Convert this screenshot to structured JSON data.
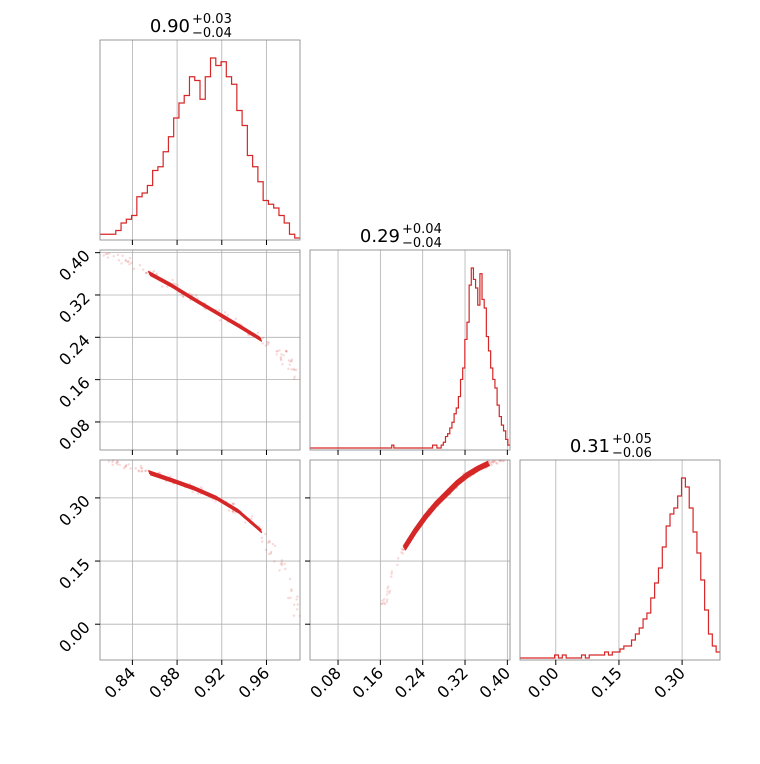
{
  "chart_data": {
    "type": "corner",
    "colors": {
      "series": "#d62728",
      "grid": "#b0b0b0",
      "frame": "#808080"
    },
    "grid": true,
    "parameters": [
      {
        "median": "0.90",
        "plus": "+0.03",
        "minus": "−0.04",
        "range": [
          0.811,
          0.99
        ]
      },
      {
        "median": "0.29",
        "plus": "+0.04",
        "minus": "−0.04",
        "range": [
          0.027,
          0.405
        ]
      },
      {
        "median": "0.31",
        "plus": "+0.05",
        "minus": "−0.06",
        "range": [
          -0.085,
          0.39
        ]
      }
    ],
    "ticks": {
      "p0": {
        "values": [
          0.84,
          0.88,
          0.92,
          0.96
        ],
        "labels": [
          "0.84",
          "0.88",
          "0.92",
          "0.96"
        ]
      },
      "p1": {
        "values": [
          0.08,
          0.16,
          0.24,
          0.32,
          0.4
        ],
        "labels": [
          "0.08",
          "0.16",
          "0.24",
          "0.32",
          "0.40"
        ]
      },
      "p2": {
        "values": [
          0.0,
          0.15,
          0.3
        ],
        "labels": [
          "0.00",
          "0.15",
          "0.30"
        ]
      }
    },
    "histograms": [
      {
        "param": 0,
        "counts": [
          1,
          1,
          1,
          2,
          4,
          5,
          6,
          11,
          12,
          14,
          18,
          19,
          23,
          27,
          32,
          36,
          38,
          43,
          42,
          37,
          43,
          48,
          46,
          47,
          43,
          41,
          34,
          30,
          22,
          19,
          15,
          10,
          9,
          8,
          6,
          4,
          1,
          0
        ]
      },
      {
        "param": 1,
        "counts": [
          0,
          0,
          0,
          0,
          0,
          0,
          0,
          0,
          0,
          0,
          0,
          0,
          0,
          0,
          0,
          0,
          0,
          0,
          0,
          0,
          0,
          0,
          0,
          0,
          0,
          0,
          0,
          0,
          0,
          0,
          0,
          0,
          0,
          0,
          0,
          0,
          0,
          0,
          1,
          0,
          0,
          0,
          0,
          0,
          0,
          0,
          0,
          0,
          0,
          0,
          0,
          0,
          0,
          0,
          0,
          0,
          0,
          1,
          1,
          0,
          0,
          1,
          2,
          4,
          5,
          7,
          9,
          12,
          14,
          18,
          24,
          28,
          38,
          44,
          57,
          63,
          59,
          56,
          50,
          61,
          52,
          49,
          39,
          34,
          28,
          24,
          21,
          15,
          11,
          8,
          6,
          3,
          1
        ]
      },
      {
        "param": 2,
        "counts": [
          0,
          0,
          0,
          0,
          0,
          0,
          0,
          0,
          0,
          1,
          0,
          1,
          0,
          0,
          0,
          0,
          1,
          0,
          1,
          1,
          1,
          1,
          2,
          1,
          2,
          2,
          3,
          4,
          4,
          6,
          8,
          10,
          13,
          15,
          20,
          25,
          30,
          37,
          44,
          48,
          50,
          54,
          60,
          57,
          50,
          42,
          35,
          26,
          16,
          8,
          4,
          2
        ]
      }
    ],
    "scatter": [
      {
        "x": 1,
        "y": 0,
        "line": [
          [
            0.815,
            0.401
          ],
          [
            0.835,
            0.385
          ],
          [
            0.855,
            0.361
          ],
          [
            0.875,
            0.338
          ],
          [
            0.895,
            0.312
          ],
          [
            0.915,
            0.287
          ],
          [
            0.935,
            0.262
          ],
          [
            0.955,
            0.236
          ],
          [
            0.975,
            0.207
          ],
          [
            0.99,
            0.16
          ]
        ]
      },
      {
        "x": 2,
        "y": 0,
        "line": [
          [
            0.815,
            0.39
          ],
          [
            0.835,
            0.377
          ],
          [
            0.855,
            0.36
          ],
          [
            0.875,
            0.342
          ],
          [
            0.895,
            0.323
          ],
          [
            0.915,
            0.3
          ],
          [
            0.935,
            0.268
          ],
          [
            0.955,
            0.222
          ],
          [
            0.975,
            0.13
          ],
          [
            0.99,
            0.02
          ]
        ]
      },
      {
        "x": 2,
        "y": 1,
        "line": [
          [
            0.165,
            0.04
          ],
          [
            0.185,
            0.12
          ],
          [
            0.205,
            0.18
          ],
          [
            0.225,
            0.22
          ],
          [
            0.245,
            0.255
          ],
          [
            0.265,
            0.285
          ],
          [
            0.285,
            0.31
          ],
          [
            0.305,
            0.335
          ],
          [
            0.325,
            0.355
          ],
          [
            0.345,
            0.37
          ],
          [
            0.365,
            0.382
          ],
          [
            0.385,
            0.39
          ],
          [
            0.4,
            0.395
          ]
        ]
      }
    ]
  }
}
